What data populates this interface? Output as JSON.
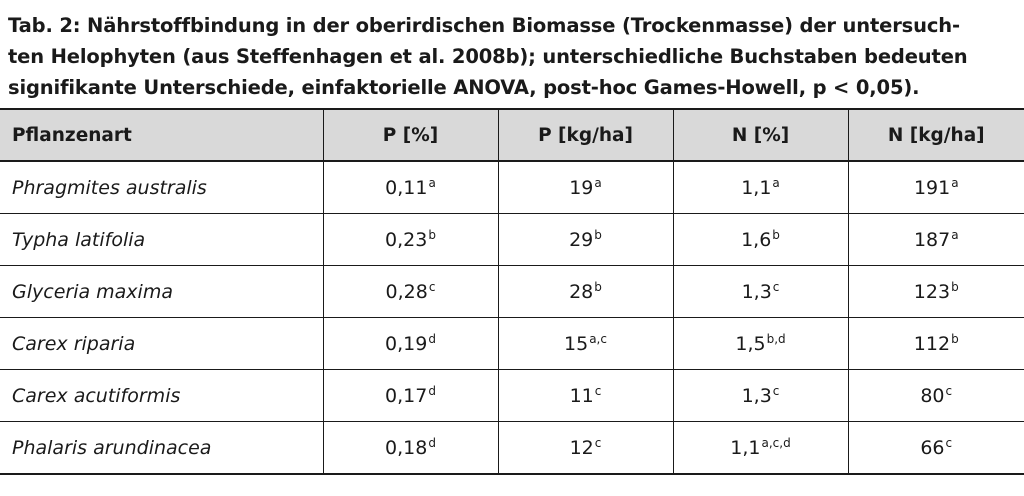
{
  "caption": {
    "line1": "Tab. 2: Nährstoffbindung in der oberirdischen Biomasse (Trockenmasse) der untersuch-",
    "line2": "ten Helophyten (aus Steffenhagen et al. 2008b); unterschiedliche Buchstaben bedeuten",
    "line3": "signifikante Unterschiede, einfaktorielle ANOVA, post-hoc Games-Howell, p < 0,05)."
  },
  "table": {
    "headers": [
      "Pflanzenart",
      "P [%]",
      "P [kg/ha]",
      "N [%]",
      "N [kg/ha]"
    ],
    "rows": [
      {
        "species": "Phragmites australis",
        "cells": [
          {
            "value": "0,11",
            "sig": "a"
          },
          {
            "value": "19",
            "sig": "a"
          },
          {
            "value": "1,1",
            "sig": "a"
          },
          {
            "value": "191",
            "sig": "a"
          }
        ]
      },
      {
        "species": "Typha latifolia",
        "cells": [
          {
            "value": "0,23",
            "sig": "b"
          },
          {
            "value": "29",
            "sig": "b"
          },
          {
            "value": "1,6",
            "sig": "b"
          },
          {
            "value": "187",
            "sig": "a"
          }
        ]
      },
      {
        "species": "Glyceria maxima",
        "cells": [
          {
            "value": "0,28",
            "sig": "c"
          },
          {
            "value": "28",
            "sig": "b"
          },
          {
            "value": "1,3",
            "sig": "c"
          },
          {
            "value": "123",
            "sig": "b"
          }
        ]
      },
      {
        "species": "Carex riparia",
        "cells": [
          {
            "value": "0,19",
            "sig": "d"
          },
          {
            "value": "15",
            "sig": "a,c"
          },
          {
            "value": "1,5",
            "sig": "b,d"
          },
          {
            "value": "112",
            "sig": "b"
          }
        ]
      },
      {
        "species": "Carex acutiformis",
        "cells": [
          {
            "value": "0,17",
            "sig": "d"
          },
          {
            "value": "11",
            "sig": "c"
          },
          {
            "value": "1,3",
            "sig": "c"
          },
          {
            "value": "80",
            "sig": "c"
          }
        ]
      },
      {
        "species": "Phalaris arundinacea",
        "cells": [
          {
            "value": "0,18",
            "sig": "d"
          },
          {
            "value": "12",
            "sig": "c"
          },
          {
            "value": "1,1",
            "sig": "a,c,d"
          },
          {
            "value": "66",
            "sig": "c"
          }
        ]
      }
    ]
  },
  "colors": {
    "header_background": "#d9d9d9",
    "text": "#1a1a1a",
    "rule": "#1a1a1a"
  }
}
